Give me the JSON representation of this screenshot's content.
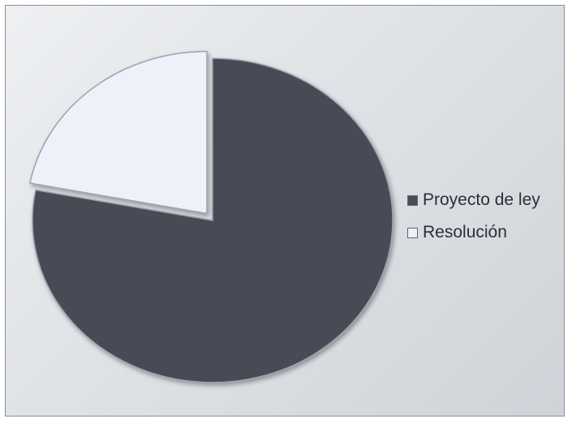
{
  "chart_data": {
    "type": "pie",
    "title": "",
    "slices": [
      {
        "label": "Proyecto de ley",
        "value": 78,
        "color": "#474c55"
      },
      {
        "label": "Resolución",
        "value": 22,
        "color": "#edf2fa"
      }
    ],
    "legend_position": "right",
    "exploded_slice": "Resolución"
  }
}
